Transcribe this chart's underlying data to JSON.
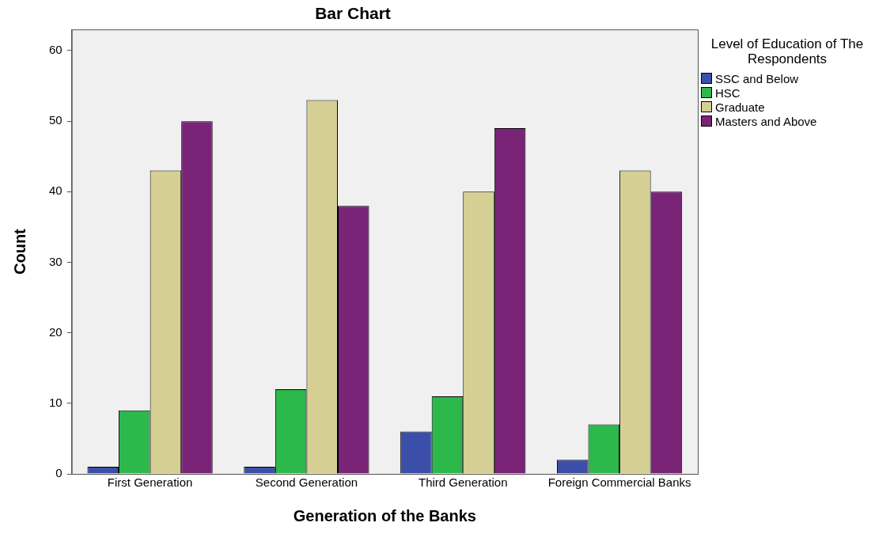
{
  "chart_data": {
    "type": "bar",
    "title": "Bar Chart",
    "xlabel": "Generation of the Banks",
    "ylabel": "Count",
    "legend_title": "Level of Education of The Respondents",
    "legend": "right",
    "categories": [
      "First Generation",
      "Second Generation",
      "Third Generation",
      "Foreign Commercial Banks"
    ],
    "series": [
      {
        "name": "SSC and Below",
        "color": "#3b4fa8",
        "values": [
          1,
          1,
          6,
          2
        ]
      },
      {
        "name": "HSC",
        "color": "#2db84b",
        "values": [
          9,
          12,
          11,
          7
        ]
      },
      {
        "name": "Graduate",
        "color": "#d6cf94",
        "values": [
          43,
          53,
          40,
          43
        ]
      },
      {
        "name": "Masters and Above",
        "color": "#7a2477",
        "values": [
          50,
          38,
          49,
          40
        ]
      }
    ],
    "ylim": [
      0,
      63
    ],
    "yticks": [
      0,
      10,
      20,
      30,
      40,
      50,
      60
    ],
    "grid": false
  }
}
